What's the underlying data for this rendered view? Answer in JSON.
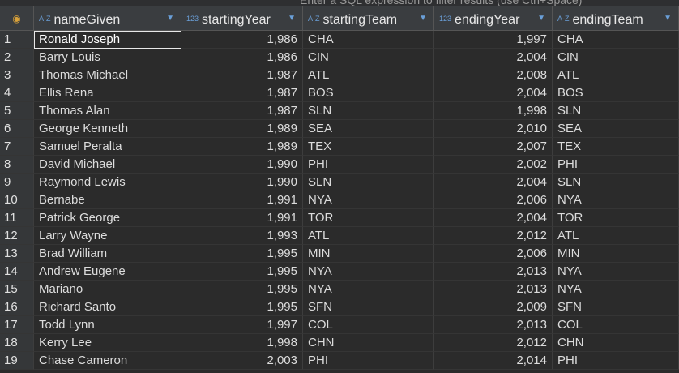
{
  "filter_bar": {
    "placeholder": "Enter a SQL expression to filter results (use Ctrl+Space)"
  },
  "table": {
    "columns": [
      {
        "type": "A-Z",
        "name": "nameGiven"
      },
      {
        "type": "123",
        "name": "startingYear"
      },
      {
        "type": "A-Z",
        "name": "startingTeam"
      },
      {
        "type": "123",
        "name": "endingYear"
      },
      {
        "type": "A-Z",
        "name": "endingTeam"
      }
    ],
    "rows": [
      [
        "1",
        "Ronald Joseph",
        "1,986",
        "CHA",
        "1,997",
        "CHA"
      ],
      [
        "2",
        "Barry Louis",
        "1,986",
        "CIN",
        "2,004",
        "CIN"
      ],
      [
        "3",
        "Thomas Michael",
        "1,987",
        "ATL",
        "2,008",
        "ATL"
      ],
      [
        "4",
        "Ellis Rena",
        "1,987",
        "BOS",
        "2,004",
        "BOS"
      ],
      [
        "5",
        "Thomas Alan",
        "1,987",
        "SLN",
        "1,998",
        "SLN"
      ],
      [
        "6",
        "George Kenneth",
        "1,989",
        "SEA",
        "2,010",
        "SEA"
      ],
      [
        "7",
        "Samuel Peralta",
        "1,989",
        "TEX",
        "2,007",
        "TEX"
      ],
      [
        "8",
        "David Michael",
        "1,990",
        "PHI",
        "2,002",
        "PHI"
      ],
      [
        "9",
        "Raymond Lewis",
        "1,990",
        "SLN",
        "2,004",
        "SLN"
      ],
      [
        "10",
        "Bernabe",
        "1,991",
        "NYA",
        "2,006",
        "NYA"
      ],
      [
        "11",
        "Patrick George",
        "1,991",
        "TOR",
        "2,004",
        "TOR"
      ],
      [
        "12",
        "Larry Wayne",
        "1,993",
        "ATL",
        "2,012",
        "ATL"
      ],
      [
        "13",
        "Brad William",
        "1,995",
        "MIN",
        "2,006",
        "MIN"
      ],
      [
        "14",
        "Andrew Eugene",
        "1,995",
        "NYA",
        "2,013",
        "NYA"
      ],
      [
        "15",
        "Mariano",
        "1,995",
        "NYA",
        "2,013",
        "NYA"
      ],
      [
        "16",
        "Richard Santo",
        "1,995",
        "SFN",
        "2,009",
        "SFN"
      ],
      [
        "17",
        "Todd Lynn",
        "1,997",
        "COL",
        "2,013",
        "COL"
      ],
      [
        "18",
        "Kerry Lee",
        "1,998",
        "CHN",
        "2,012",
        "CHN"
      ],
      [
        "19",
        "Chase Cameron",
        "2,003",
        "PHI",
        "2,014",
        "PHI"
      ]
    ]
  }
}
